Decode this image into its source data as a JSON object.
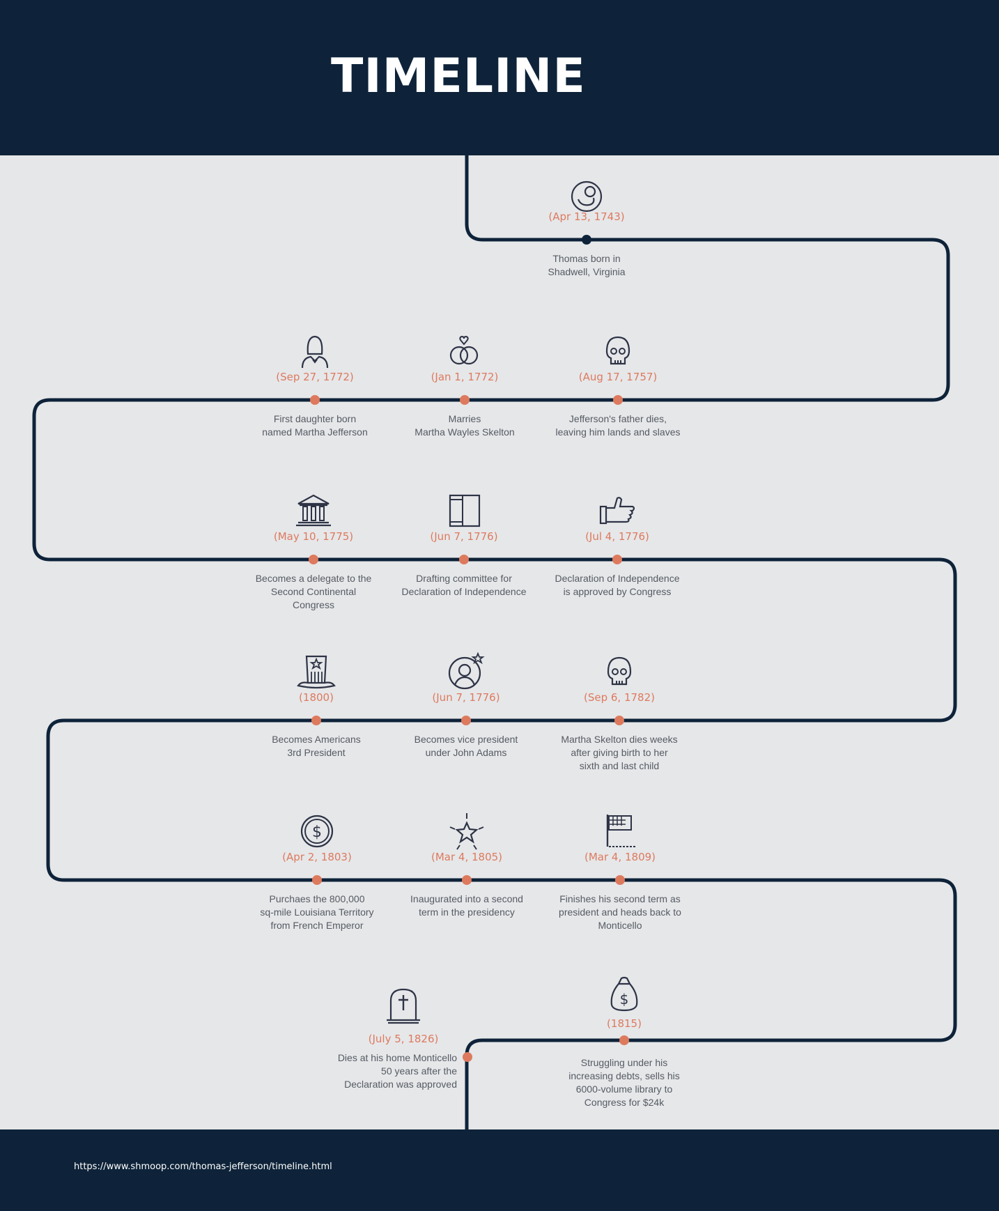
{
  "header": {
    "title": "TIMELINE"
  },
  "footer": {
    "source_url": "https://www.shmoop.com/thomas-jefferson/timeline.html"
  },
  "colors": {
    "navy": "#0e2339",
    "accent": "#dd7a5e",
    "background": "#e6e7e9",
    "text": "#555b63"
  },
  "events": [
    {
      "date": "(Apr 13, 1743)",
      "description": "Thomas born in\nShadwell, Virginia",
      "icon": "baby-icon"
    },
    {
      "date": "(Aug 17, 1757)",
      "description": "Jefferson's father dies,\nleaving him lands and slaves",
      "icon": "skull-icon"
    },
    {
      "date": "(Jan 1, 1772)",
      "description": "Marries\nMartha Wayles Skelton",
      "icon": "rings-icon"
    },
    {
      "date": "(Sep 27, 1772)",
      "description": "First daughter born\nnamed Martha Jefferson",
      "icon": "woman-icon"
    },
    {
      "date": "(May 10, 1775)",
      "description": "Becomes a delegate to the\nSecond Continental\nCongress",
      "icon": "government-building-icon"
    },
    {
      "date": "(Jun 7, 1776)",
      "description": "Drafting committee for\nDeclaration of Independence",
      "icon": "document-icon"
    },
    {
      "date": "(Jul 4, 1776)",
      "description": "Declaration of Independence\nis approved by Congress",
      "icon": "thumbs-up-icon"
    },
    {
      "date": "(Sep 6, 1782)",
      "description": "Martha Skelton dies weeks\nafter giving birth to her\nsixth and last child",
      "icon": "skull-icon"
    },
    {
      "date": "(Jun 7, 1776)",
      "description": "Becomes vice president\nunder John Adams",
      "icon": "person-star-icon"
    },
    {
      "date": "(1800)",
      "description": "Becomes Americans\n3rd President",
      "icon": "uncle-sam-hat-icon"
    },
    {
      "date": "(Apr 2, 1803)",
      "description": "Purchaes the 800,000\nsq-mile Louisiana Territory\nfrom French Emperor",
      "icon": "dollar-coin-icon"
    },
    {
      "date": "(Mar 4, 1805)",
      "description": "Inaugurated into a second\nterm in the presidency",
      "icon": "star-burst-icon"
    },
    {
      "date": "(Mar 4, 1809)",
      "description": "Finishes his second term as\npresident and heads back to\nMonticello",
      "icon": "flag-icon"
    },
    {
      "date": "(1815)",
      "description": "Struggling under his\nincreasing debts, sells his\n6000-volume library to\nCongress for $24k",
      "icon": "money-bag-icon"
    },
    {
      "date": "(July 5, 1826)",
      "description": "Dies at his home Monticello\n50 years after the\nDeclaration was approved",
      "icon": "tombstone-icon"
    }
  ]
}
